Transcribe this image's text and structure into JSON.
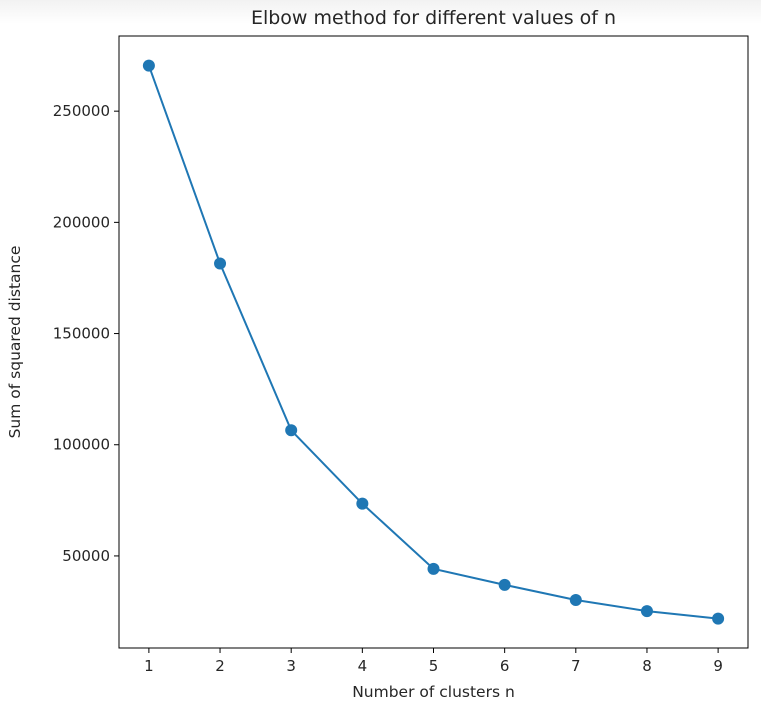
{
  "chart_data": {
    "type": "line",
    "title": "Elbow method for different values of n",
    "xlabel": "Number of clusters n",
    "ylabel": "Sum of squared distance",
    "x": [
      1,
      2,
      3,
      4,
      5,
      6,
      7,
      8,
      9
    ],
    "series": [
      {
        "values": [
          270500,
          181500,
          106500,
          73500,
          44200,
          37000,
          30200,
          25200,
          21800
        ],
        "color": "#1f77b4",
        "marker": "circle"
      }
    ],
    "x_ticks": [
      1,
      2,
      3,
      4,
      5,
      6,
      7,
      8,
      9
    ],
    "y_ticks": [
      50000,
      100000,
      150000,
      200000,
      250000
    ],
    "xlim": [
      0.58,
      9.42
    ],
    "ylim": [
      8600,
      283800
    ],
    "grid": false
  }
}
